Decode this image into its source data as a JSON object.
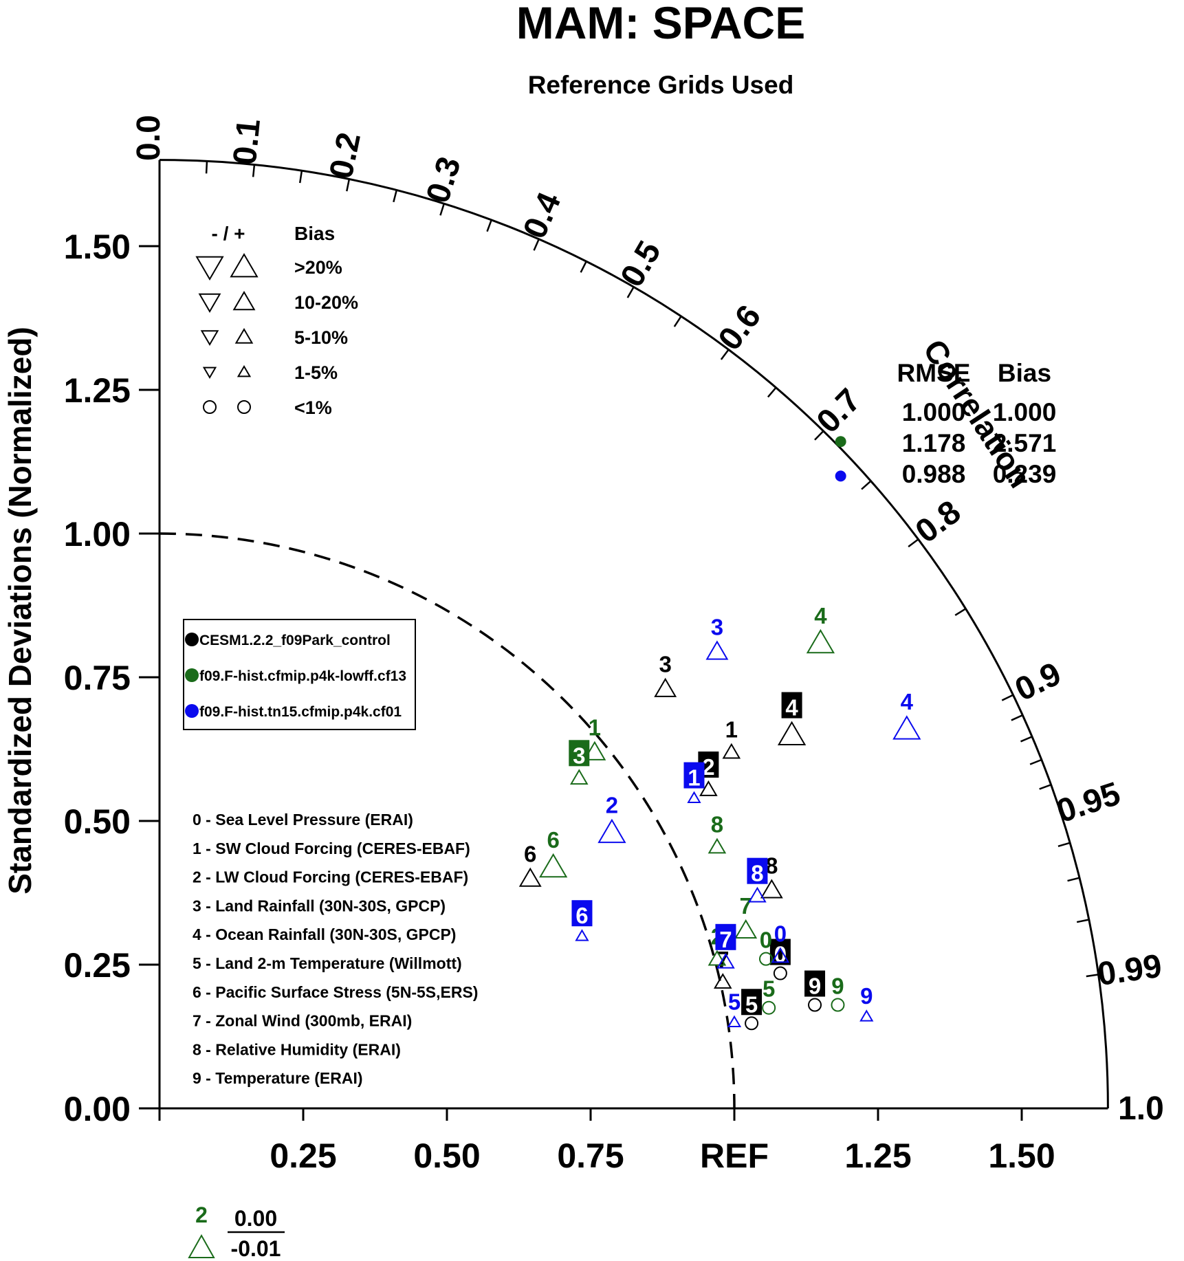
{
  "chart_data": {
    "type": "taylor-diagram",
    "title": "MAM: SPACE",
    "subtitle": "Reference Grids Used",
    "ylabel": "Standardized Deviations (Normalized)",
    "correlation_label": "Correlation",
    "std_range": [
      0,
      1.65
    ],
    "std_ticks": [
      "0.00",
      "0.25",
      "0.50",
      "0.75",
      "1.00",
      "1.25",
      "1.50"
    ],
    "x_ticks": [
      {
        "value": 0.25,
        "label": "0.25"
      },
      {
        "value": 0.5,
        "label": "0.50"
      },
      {
        "value": 0.75,
        "label": "0.75"
      },
      {
        "value": 1.0,
        "label": "REF"
      },
      {
        "value": 1.25,
        "label": "1.25"
      },
      {
        "value": 1.5,
        "label": "1.50"
      }
    ],
    "corr_labels": [
      "0.0",
      "0.1",
      "0.2",
      "0.3",
      "0.4",
      "0.5",
      "0.6",
      "0.7",
      "0.8",
      "0.9",
      "0.95",
      "0.99",
      "1.0"
    ],
    "reference_std": 1.0,
    "bias_legend": {
      "header_signs": "- / +",
      "header_bias": "Bias",
      "rows": [
        ">20%",
        "10-20%",
        "5-10%",
        "1-5%",
        "<1%"
      ]
    },
    "series": [
      {
        "name": "CESM1.2.2_f09Park_control",
        "color": "#000000"
      },
      {
        "name": "f09.F-hist.cfmip.p4k-lowff.cf13",
        "color": "#1a6b1a"
      },
      {
        "name": "f09.F-hist.tn15.cfmip.p4k.cf01",
        "color": "#0a0aee"
      }
    ],
    "variables": [
      "0 - Sea Level Pressure (ERAI)",
      "1 - SW Cloud Forcing (CERES-EBAF)",
      "2 - LW Cloud Forcing (CERES-EBAF)",
      "3 - Land Rainfall (30N-30S, GPCP)",
      "4 - Ocean Rainfall (30N-30S, GPCP)",
      "5 - Land 2-m Temperature (Willmott)",
      "6 - Pacific Surface Stress (5N-5S,ERS)",
      "7 - Zonal Wind (300mb, ERAI)",
      "8 - Relative Humidity (ERAI)",
      "9 - Temperature (ERAI)"
    ],
    "summary_table": {
      "headers": [
        "RMSE",
        "Bias"
      ],
      "rows": [
        [
          "1.000",
          "1.000"
        ],
        [
          "1.178",
          "2.571"
        ],
        [
          "0.988",
          "0.239"
        ]
      ]
    },
    "offscale_note": {
      "label": "2",
      "numerator": "0.00",
      "denominator": "-0.01"
    },
    "points": [
      {
        "series": 0,
        "label": "0",
        "x": 1.08,
        "y": 0.235,
        "marker": "circle",
        "size": 1,
        "boxed": true
      },
      {
        "series": 0,
        "label": "1",
        "x": 0.995,
        "y": 0.62,
        "marker": "up",
        "size": 2,
        "boxed": false
      },
      {
        "series": 0,
        "label": "2",
        "x": 0.955,
        "y": 0.555,
        "marker": "up",
        "size": 2,
        "boxed": true
      },
      {
        "series": 0,
        "label": "3",
        "x": 0.88,
        "y": 0.73,
        "marker": "up",
        "size": 3,
        "boxed": false
      },
      {
        "series": 0,
        "label": "4",
        "x": 1.1,
        "y": 0.65,
        "marker": "up",
        "size": 4,
        "boxed": true
      },
      {
        "series": 0,
        "label": "5",
        "x": 1.03,
        "y": 0.148,
        "marker": "circle",
        "size": 1,
        "boxed": true
      },
      {
        "series": 0,
        "label": "6",
        "x": 0.645,
        "y": 0.4,
        "marker": "up",
        "size": 3,
        "boxed": false
      },
      {
        "series": 0,
        "label": "7",
        "x": 0.98,
        "y": 0.22,
        "marker": "up",
        "size": 2,
        "boxed": false
      },
      {
        "series": 0,
        "label": "8",
        "x": 1.065,
        "y": 0.38,
        "marker": "up",
        "size": 3,
        "boxed": false
      },
      {
        "series": 0,
        "label": "9",
        "x": 1.14,
        "y": 0.18,
        "marker": "circle",
        "size": 1,
        "boxed": true
      },
      {
        "series": 1,
        "label": "0",
        "x": 1.055,
        "y": 0.26,
        "marker": "circle",
        "size": 1,
        "boxed": false
      },
      {
        "series": 1,
        "label": "1",
        "x": 0.757,
        "y": 0.62,
        "marker": "up",
        "size": 3,
        "boxed": false
      },
      {
        "series": 1,
        "label": "2",
        "x": 0.97,
        "y": 0.26,
        "marker": "up",
        "size": 2,
        "boxed": false
      },
      {
        "series": 1,
        "label": "3",
        "x": 0.73,
        "y": 0.575,
        "marker": "up",
        "size": 2,
        "boxed": true
      },
      {
        "series": 1,
        "label": "4",
        "x": 1.15,
        "y": 0.81,
        "marker": "up",
        "size": 4,
        "boxed": false
      },
      {
        "series": 1,
        "label": "5",
        "x": 1.06,
        "y": 0.175,
        "marker": "circle",
        "size": 1,
        "boxed": false
      },
      {
        "series": 1,
        "label": "6",
        "x": 0.685,
        "y": 0.42,
        "marker": "up",
        "size": 4,
        "boxed": false
      },
      {
        "series": 1,
        "label": "7",
        "x": 1.02,
        "y": 0.31,
        "marker": "up",
        "size": 3,
        "boxed": false
      },
      {
        "series": 1,
        "label": "8",
        "x": 0.97,
        "y": 0.455,
        "marker": "up",
        "size": 2,
        "boxed": false
      },
      {
        "series": 1,
        "label": "9",
        "x": 1.18,
        "y": 0.18,
        "marker": "circle",
        "size": 1,
        "boxed": false
      },
      {
        "series": 2,
        "label": "0",
        "x": 1.08,
        "y": 0.265,
        "marker": "up",
        "size": 2,
        "boxed": false
      },
      {
        "series": 2,
        "label": "1",
        "x": 0.93,
        "y": 0.54,
        "marker": "up",
        "size": 1,
        "boxed": true
      },
      {
        "series": 2,
        "label": "2",
        "x": 0.787,
        "y": 0.48,
        "marker": "up",
        "size": 4,
        "boxed": false
      },
      {
        "series": 2,
        "label": "3",
        "x": 0.97,
        "y": 0.795,
        "marker": "up",
        "size": 3,
        "boxed": false
      },
      {
        "series": 2,
        "label": "4",
        "x": 1.3,
        "y": 0.66,
        "marker": "up",
        "size": 4,
        "boxed": false
      },
      {
        "series": 2,
        "label": "5",
        "x": 1.0,
        "y": 0.15,
        "marker": "up",
        "size": 1,
        "boxed": false
      },
      {
        "series": 2,
        "label": "6",
        "x": 0.735,
        "y": 0.3,
        "marker": "up",
        "size": 1,
        "boxed": true
      },
      {
        "series": 2,
        "label": "7",
        "x": 0.985,
        "y": 0.255,
        "marker": "up",
        "size": 2,
        "boxed": true
      },
      {
        "series": 2,
        "label": "8",
        "x": 1.04,
        "y": 0.37,
        "marker": "up",
        "size": 2,
        "boxed": true
      },
      {
        "series": 2,
        "label": "9",
        "x": 1.23,
        "y": 0.16,
        "marker": "up",
        "size": 1,
        "boxed": false
      }
    ],
    "reference_points": [
      {
        "series": 1,
        "x": 1.185,
        "y": 1.16
      },
      {
        "series": 2,
        "x": 1.185,
        "y": 1.1
      }
    ]
  }
}
